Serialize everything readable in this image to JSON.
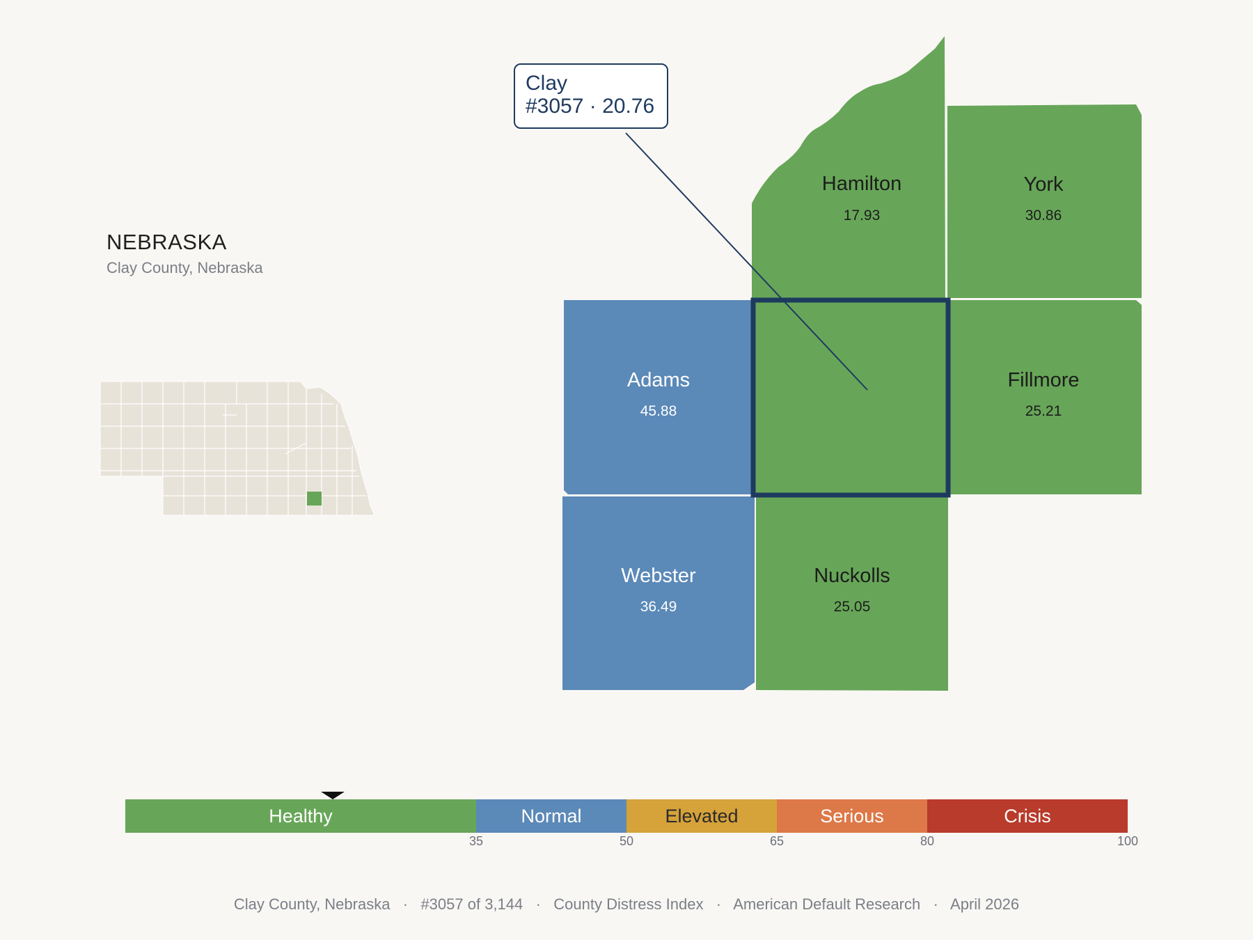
{
  "header": {
    "state": "NEBRASKA",
    "subtitle": "Clay County, Nebraska"
  },
  "colors": {
    "healthy": "#67a658",
    "normal": "#5b89b8",
    "elevated": "#d6a23a",
    "serious": "#dd7848",
    "crisis": "#b93b2b",
    "highlight_border": "#1f3a5f",
    "locator_fill": "#e8e3d9"
  },
  "focus_county": {
    "name": "Clay",
    "rank": "#3057",
    "score": "20.76",
    "label_line1": "Clay",
    "label_line2": "#3057 · 20.76",
    "category": "healthy"
  },
  "counties": [
    {
      "name": "Hamilton",
      "score": "17.93",
      "category": "healthy"
    },
    {
      "name": "York",
      "score": "30.86",
      "category": "healthy"
    },
    {
      "name": "Adams",
      "score": "45.88",
      "category": "normal"
    },
    {
      "name": "Fillmore",
      "score": "25.21",
      "category": "healthy"
    },
    {
      "name": "Webster",
      "score": "36.49",
      "category": "normal"
    },
    {
      "name": "Nuckolls",
      "score": "25.05",
      "category": "healthy"
    }
  ],
  "legend": {
    "segments": [
      {
        "label": "Healthy",
        "from": 0,
        "to": 35
      },
      {
        "label": "Normal",
        "from": 35,
        "to": 50
      },
      {
        "label": "Elevated",
        "from": 50,
        "to": 65
      },
      {
        "label": "Serious",
        "from": 65,
        "to": 80
      },
      {
        "label": "Crisis",
        "from": 80,
        "to": 100
      }
    ],
    "ticks": [
      "35",
      "50",
      "65",
      "80",
      "100"
    ],
    "marker_value": 20.76
  },
  "footer": {
    "text": "Clay County, Nebraska   ·   #3057 of 3,144   ·   County Distress Index   ·   American Default Research   ·   April 2026"
  }
}
